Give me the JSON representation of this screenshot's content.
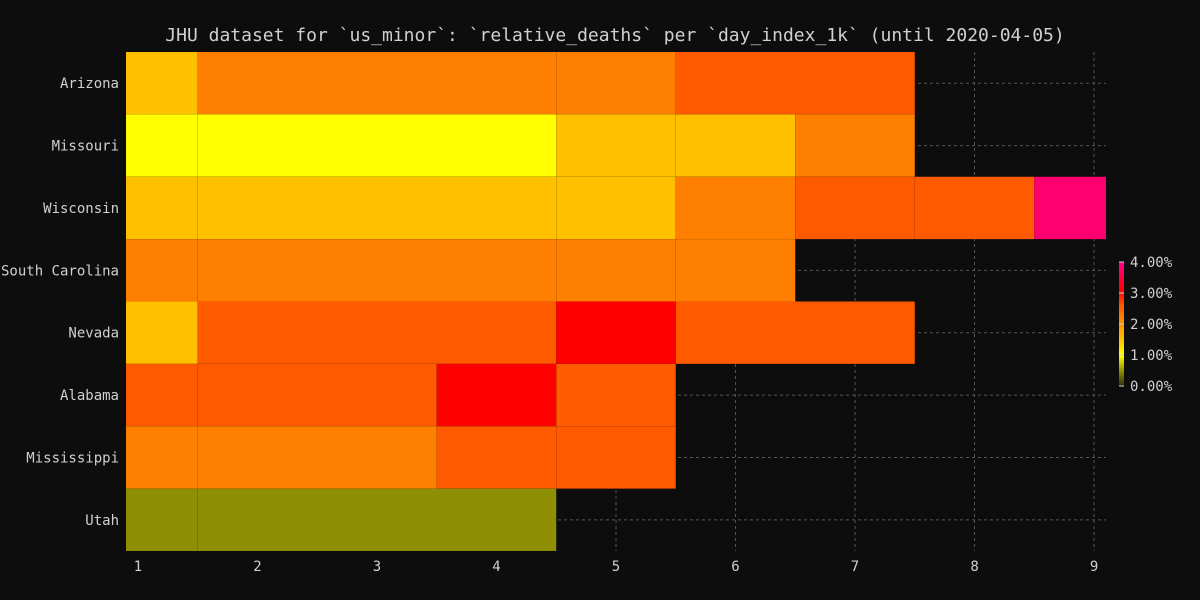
{
  "chart_data": {
    "type": "heatmap",
    "title": "JHU dataset for `us_minor`: `relative_deaths` per `day_index_1k` (until 2020-04-05)",
    "x_ticks": [
      "1",
      "2",
      "3",
      "4",
      "5",
      "6",
      "7",
      "8",
      "9"
    ],
    "xlim": [
      0.9,
      9.1
    ],
    "rows": [
      "Arizona",
      "Missouri",
      "Wisconsin",
      "South Carolina",
      "Nevada",
      "Alabama",
      "Mississippi",
      "Utah"
    ],
    "cells": [
      {
        "row": "Arizona",
        "x_start": 0.9,
        "x_end": 1.5,
        "value": 1.5
      },
      {
        "row": "Arizona",
        "x_start": 1.5,
        "x_end": 4.5,
        "value": 2.2
      },
      {
        "row": "Arizona",
        "x_start": 4.5,
        "x_end": 5.5,
        "value": 2.2
      },
      {
        "row": "Arizona",
        "x_start": 5.5,
        "x_end": 7.5,
        "value": 2.6
      },
      {
        "row": "Missouri",
        "x_start": 0.9,
        "x_end": 1.5,
        "value": 1.0
      },
      {
        "row": "Missouri",
        "x_start": 1.5,
        "x_end": 4.5,
        "value": 1.0
      },
      {
        "row": "Missouri",
        "x_start": 4.5,
        "x_end": 5.5,
        "value": 1.5
      },
      {
        "row": "Missouri",
        "x_start": 5.5,
        "x_end": 6.5,
        "value": 1.5
      },
      {
        "row": "Missouri",
        "x_start": 6.5,
        "x_end": 7.5,
        "value": 2.2
      },
      {
        "row": "Wisconsin",
        "x_start": 0.9,
        "x_end": 1.5,
        "value": 1.5
      },
      {
        "row": "Wisconsin",
        "x_start": 1.5,
        "x_end": 4.5,
        "value": 1.5
      },
      {
        "row": "Wisconsin",
        "x_start": 4.5,
        "x_end": 5.5,
        "value": 1.5
      },
      {
        "row": "Wisconsin",
        "x_start": 5.5,
        "x_end": 6.5,
        "value": 2.2
      },
      {
        "row": "Wisconsin",
        "x_start": 6.5,
        "x_end": 7.5,
        "value": 2.6
      },
      {
        "row": "Wisconsin",
        "x_start": 7.5,
        "x_end": 8.5,
        "value": 2.6
      },
      {
        "row": "Wisconsin",
        "x_start": 8.5,
        "x_end": 9.1,
        "value": 3.8
      },
      {
        "row": "South Carolina",
        "x_start": 0.9,
        "x_end": 1.5,
        "value": 2.2
      },
      {
        "row": "South Carolina",
        "x_start": 1.5,
        "x_end": 4.5,
        "value": 2.2
      },
      {
        "row": "South Carolina",
        "x_start": 4.5,
        "x_end": 5.5,
        "value": 2.2
      },
      {
        "row": "South Carolina",
        "x_start": 5.5,
        "x_end": 6.5,
        "value": 2.2
      },
      {
        "row": "Nevada",
        "x_start": 0.9,
        "x_end": 1.5,
        "value": 1.5
      },
      {
        "row": "Nevada",
        "x_start": 1.5,
        "x_end": 4.5,
        "value": 2.6
      },
      {
        "row": "Nevada",
        "x_start": 4.5,
        "x_end": 5.5,
        "value": 3.1
      },
      {
        "row": "Nevada",
        "x_start": 5.5,
        "x_end": 7.5,
        "value": 2.6
      },
      {
        "row": "Alabama",
        "x_start": 0.9,
        "x_end": 1.5,
        "value": 2.6
      },
      {
        "row": "Alabama",
        "x_start": 1.5,
        "x_end": 3.5,
        "value": 2.6
      },
      {
        "row": "Alabama",
        "x_start": 3.5,
        "x_end": 4.5,
        "value": 3.1
      },
      {
        "row": "Alabama",
        "x_start": 4.5,
        "x_end": 5.5,
        "value": 2.6
      },
      {
        "row": "Mississippi",
        "x_start": 0.9,
        "x_end": 1.5,
        "value": 2.2
      },
      {
        "row": "Mississippi",
        "x_start": 1.5,
        "x_end": 3.5,
        "value": 2.2
      },
      {
        "row": "Mississippi",
        "x_start": 3.5,
        "x_end": 4.5,
        "value": 2.6
      },
      {
        "row": "Mississippi",
        "x_start": 4.5,
        "x_end": 5.5,
        "value": 2.6
      },
      {
        "row": "Utah",
        "x_start": 0.9,
        "x_end": 1.5,
        "value": 0.5
      },
      {
        "row": "Utah",
        "x_start": 1.5,
        "x_end": 4.5,
        "value": 0.5
      }
    ],
    "colorbar": {
      "ticks": [
        "4.00%",
        "3.00%",
        "2.00%",
        "1.00%",
        "0.00%"
      ],
      "tick_values": [
        4,
        3,
        2,
        1,
        0
      ],
      "stops": [
        {
          "value": 0.0,
          "color": "#2a2a10"
        },
        {
          "value": 0.5,
          "color": "#8f8f05"
        },
        {
          "value": 1.0,
          "color": "#ffff00"
        },
        {
          "value": 1.5,
          "color": "#ffc000"
        },
        {
          "value": 2.2,
          "color": "#ff8000"
        },
        {
          "value": 2.6,
          "color": "#ff5a00"
        },
        {
          "value": 3.1,
          "color": "#ff0000"
        },
        {
          "value": 4.0,
          "color": "#ff0090"
        }
      ],
      "range": [
        0,
        4
      ]
    },
    "grid": true,
    "background": "#0d0d0d",
    "grid_color": "#555555"
  }
}
